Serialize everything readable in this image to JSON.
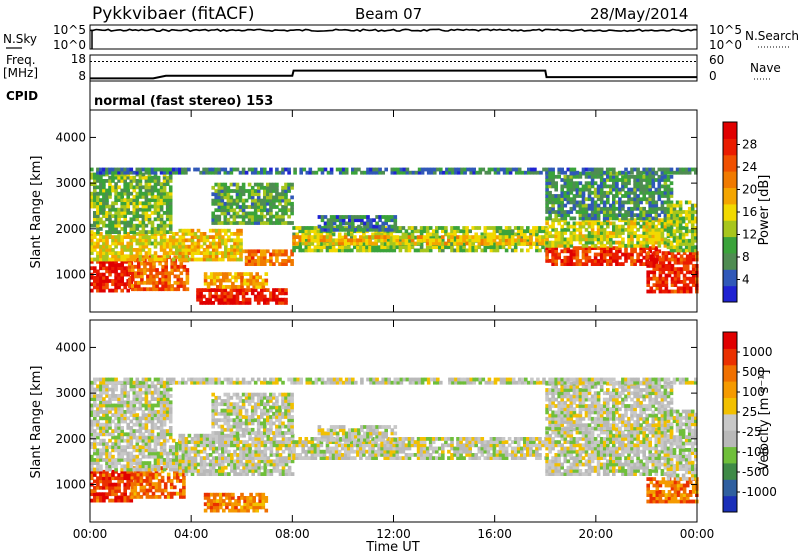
{
  "header": {
    "radar": "Pykkvibaer (fitACF)",
    "beam": "Beam 07",
    "date": "28/May/2014"
  },
  "nsky_panel": {
    "left_label": "N.Sky",
    "right_label": "N.Search",
    "left_ticks": [
      "10^5",
      "10^0"
    ],
    "right_ticks": [
      "10^5",
      "10^0"
    ]
  },
  "freq_panel": {
    "left_label_1": "Freq.",
    "left_label_2": "[MHz]",
    "right_label": "Nave",
    "left_ticks": [
      "18",
      "8"
    ],
    "right_ticks": [
      "60",
      "0"
    ]
  },
  "cpid": {
    "label": "CPID",
    "text": "normal (fast stereo) 153"
  },
  "chart_data": [
    {
      "type": "heatmap",
      "name": "Power",
      "ylabel": "Slant Range [km]",
      "xlabel": "Time UT",
      "ylim": [
        180,
        4600
      ],
      "xlim": [
        0,
        24
      ],
      "y_ticks": [
        "1000",
        "2000",
        "3000",
        "4000"
      ],
      "colorbar": {
        "label": "Power [dB]",
        "ticks": [
          "4",
          "8",
          "12",
          "16",
          "20",
          "24",
          "28"
        ],
        "colors": [
          "#1f22d2",
          "#3058b8",
          "#4f8c52",
          "#3aa33a",
          "#a7c61d",
          "#f2d900",
          "#f4a500",
          "#f07a00",
          "#f05000",
          "#ea1c00",
          "#e00000"
        ]
      },
      "regions": [
        {
          "t0": 0.0,
          "t1": 1.6,
          "r0": 620,
          "r1": 1300,
          "level": 0.92
        },
        {
          "t0": 1.5,
          "t1": 3.8,
          "r0": 650,
          "r1": 1400,
          "level": 0.75
        },
        {
          "t0": 0.0,
          "t1": 3.5,
          "r0": 1300,
          "r1": 1900,
          "level": 0.5
        },
        {
          "t0": 0.0,
          "t1": 3.2,
          "r0": 1900,
          "r1": 3200,
          "level": 0.35
        },
        {
          "t0": 3.5,
          "t1": 6.0,
          "r0": 1300,
          "r1": 2000,
          "level": 0.55
        },
        {
          "t0": 6.0,
          "t1": 8.0,
          "r0": 1200,
          "r1": 1500,
          "level": 0.7
        },
        {
          "t0": 4.2,
          "t1": 7.8,
          "r0": 350,
          "r1": 650,
          "level": 0.9
        },
        {
          "t0": 4.5,
          "t1": 7.0,
          "r0": 700,
          "r1": 1000,
          "level": 0.6
        },
        {
          "t0": 4.8,
          "t1": 8.0,
          "r0": 2100,
          "r1": 3000,
          "level": 0.3
        },
        {
          "t0": 8.0,
          "t1": 18.0,
          "r0": 1500,
          "r1": 2000,
          "level": 0.4
        },
        {
          "t0": 8.0,
          "t1": 18.0,
          "r0": 1650,
          "r1": 1850,
          "level": 0.55
        },
        {
          "t0": 9.0,
          "t1": 12.0,
          "r0": 1950,
          "r1": 2300,
          "level": 0.2
        },
        {
          "t0": 18.0,
          "t1": 22.5,
          "r0": 1200,
          "r1": 1600,
          "level": 0.85
        },
        {
          "t0": 18.0,
          "t1": 23.0,
          "r0": 1600,
          "r1": 2200,
          "level": 0.45
        },
        {
          "t0": 18.0,
          "t1": 23.0,
          "r0": 2200,
          "r1": 3200,
          "level": 0.25
        },
        {
          "t0": 22.0,
          "t1": 24.0,
          "r0": 600,
          "r1": 1500,
          "level": 0.85
        },
        {
          "t0": 22.8,
          "t1": 24.0,
          "r0": 1500,
          "r1": 2600,
          "level": 0.4
        },
        {
          "t0": 0.0,
          "t1": 24.0,
          "r0": 3200,
          "r1": 3300,
          "level": 0.2
        }
      ]
    },
    {
      "type": "heatmap",
      "name": "Velocity",
      "ylabel": "Slant Range [km]",
      "xlabel": "Time UT",
      "ylim": [
        180,
        4600
      ],
      "xlim": [
        0,
        24
      ],
      "y_ticks": [
        "1000",
        "2000",
        "3000",
        "4000"
      ],
      "colorbar": {
        "label": "Velocity [m s⁻¹]",
        "ticks": [
          "1000",
          "500",
          "100",
          "25",
          "-25",
          "-100",
          "-500",
          "-1000"
        ],
        "colors": [
          "#1a2fb8",
          "#2f5f9f",
          "#3f8a47",
          "#6fbf3a",
          "#b9b9b9",
          "#c8c8c8",
          "#f2c000",
          "#f59a00",
          "#f07000",
          "#ea3000",
          "#e00000"
        ]
      },
      "regions": [
        {
          "t0": 0.0,
          "t1": 1.7,
          "r0": 620,
          "r1": 1300,
          "level": 0.85
        },
        {
          "t0": 1.6,
          "t1": 3.7,
          "r0": 700,
          "r1": 1400,
          "level": 0.75
        },
        {
          "t0": 0.0,
          "t1": 3.5,
          "r0": 1300,
          "r1": 2000,
          "level": 0.45
        },
        {
          "t0": 0.0,
          "t1": 3.2,
          "r0": 2000,
          "r1": 3200,
          "level": 0.45
        },
        {
          "t0": 3.5,
          "t1": 8.0,
          "r0": 1200,
          "r1": 2100,
          "level": 0.45
        },
        {
          "t0": 4.5,
          "t1": 7.0,
          "r0": 400,
          "r1": 800,
          "level": 0.72
        },
        {
          "t0": 4.8,
          "t1": 8.0,
          "r0": 2100,
          "r1": 3000,
          "level": 0.45
        },
        {
          "t0": 8.0,
          "t1": 18.0,
          "r0": 1550,
          "r1": 2000,
          "level": 0.45
        },
        {
          "t0": 9.0,
          "t1": 12.0,
          "r0": 1950,
          "r1": 2300,
          "level": 0.45
        },
        {
          "t0": 18.0,
          "t1": 23.0,
          "r0": 1200,
          "r1": 2200,
          "level": 0.45
        },
        {
          "t0": 18.0,
          "t1": 23.0,
          "r0": 2200,
          "r1": 3200,
          "level": 0.45
        },
        {
          "t0": 22.0,
          "t1": 24.0,
          "r0": 600,
          "r1": 1100,
          "level": 0.75
        },
        {
          "t0": 22.8,
          "t1": 24.0,
          "r0": 1100,
          "r1": 2600,
          "level": 0.45
        },
        {
          "t0": 0.0,
          "t1": 24.0,
          "r0": 3200,
          "r1": 3300,
          "level": 0.45
        }
      ]
    }
  ],
  "time_axis": {
    "ticks": [
      "00:00",
      "04:00",
      "08:00",
      "12:00",
      "16:00",
      "20:00",
      "00:00"
    ],
    "label": "Time UT"
  },
  "freq_series": {
    "x": [
      0,
      2.5,
      3.0,
      8.0,
      8.05,
      18.0,
      18.05,
      24
    ],
    "freq": [
      9.0,
      9.0,
      10.0,
      10.0,
      12.0,
      12.0,
      9.5,
      9.5
    ],
    "nave_dotted": 45
  },
  "nsky_series": {
    "level_fraction": 0.78
  }
}
